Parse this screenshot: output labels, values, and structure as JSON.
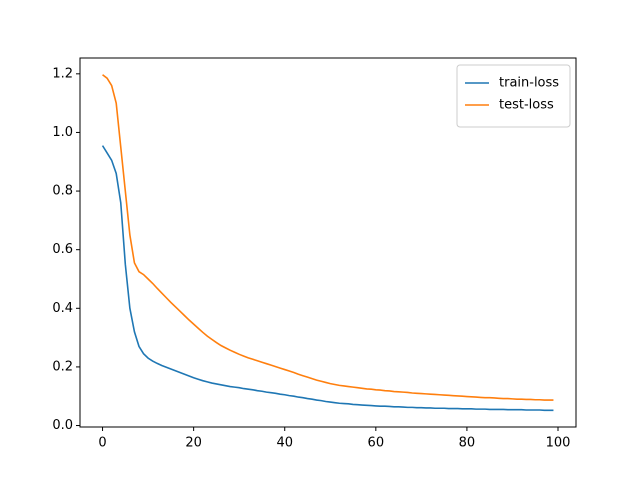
{
  "chart_data": {
    "type": "line",
    "x": [
      0,
      1,
      2,
      3,
      4,
      5,
      6,
      7,
      8,
      9,
      10,
      11,
      12,
      13,
      14,
      15,
      16,
      17,
      18,
      19,
      20,
      21,
      22,
      23,
      24,
      25,
      26,
      27,
      28,
      29,
      30,
      31,
      32,
      33,
      34,
      35,
      36,
      37,
      38,
      39,
      40,
      41,
      42,
      43,
      44,
      45,
      46,
      47,
      48,
      49,
      50,
      51,
      52,
      53,
      54,
      55,
      56,
      57,
      58,
      59,
      60,
      61,
      62,
      63,
      64,
      65,
      66,
      67,
      68,
      69,
      70,
      71,
      72,
      73,
      74,
      75,
      76,
      77,
      78,
      79,
      80,
      81,
      82,
      83,
      84,
      85,
      86,
      87,
      88,
      89,
      90,
      91,
      92,
      93,
      94,
      95,
      96,
      97,
      98,
      99
    ],
    "series": [
      {
        "name": "train-loss",
        "color": "#1f77b4",
        "values": [
          0.955,
          0.93,
          0.905,
          0.86,
          0.76,
          0.55,
          0.4,
          0.32,
          0.27,
          0.245,
          0.23,
          0.22,
          0.212,
          0.205,
          0.199,
          0.193,
          0.187,
          0.181,
          0.175,
          0.169,
          0.163,
          0.158,
          0.153,
          0.149,
          0.145,
          0.142,
          0.139,
          0.136,
          0.133,
          0.131,
          0.129,
          0.126,
          0.124,
          0.122,
          0.119,
          0.117,
          0.114,
          0.112,
          0.11,
          0.107,
          0.105,
          0.102,
          0.1,
          0.097,
          0.095,
          0.092,
          0.09,
          0.087,
          0.085,
          0.082,
          0.08,
          0.078,
          0.076,
          0.075,
          0.074,
          0.072,
          0.071,
          0.07,
          0.069,
          0.068,
          0.067,
          0.066,
          0.066,
          0.065,
          0.064,
          0.064,
          0.063,
          0.062,
          0.062,
          0.061,
          0.061,
          0.06,
          0.06,
          0.059,
          0.059,
          0.059,
          0.058,
          0.058,
          0.058,
          0.057,
          0.057,
          0.057,
          0.056,
          0.056,
          0.056,
          0.055,
          0.055,
          0.055,
          0.055,
          0.054,
          0.054,
          0.054,
          0.054,
          0.053,
          0.053,
          0.053,
          0.053,
          0.052,
          0.052,
          0.052
        ]
      },
      {
        "name": "test-loss",
        "color": "#ff7f0e",
        "values": [
          1.197,
          1.185,
          1.16,
          1.1,
          0.95,
          0.8,
          0.65,
          0.555,
          0.525,
          0.515,
          0.5,
          0.485,
          0.468,
          0.452,
          0.436,
          0.42,
          0.405,
          0.39,
          0.375,
          0.36,
          0.346,
          0.332,
          0.318,
          0.305,
          0.294,
          0.283,
          0.273,
          0.265,
          0.257,
          0.25,
          0.243,
          0.237,
          0.231,
          0.226,
          0.221,
          0.216,
          0.211,
          0.206,
          0.201,
          0.196,
          0.191,
          0.186,
          0.181,
          0.175,
          0.17,
          0.165,
          0.16,
          0.155,
          0.151,
          0.147,
          0.143,
          0.14,
          0.137,
          0.135,
          0.133,
          0.131,
          0.129,
          0.127,
          0.125,
          0.124,
          0.122,
          0.121,
          0.119,
          0.118,
          0.116,
          0.115,
          0.114,
          0.113,
          0.111,
          0.11,
          0.109,
          0.108,
          0.107,
          0.106,
          0.105,
          0.104,
          0.103,
          0.102,
          0.101,
          0.1,
          0.099,
          0.098,
          0.097,
          0.096,
          0.095,
          0.095,
          0.094,
          0.093,
          0.092,
          0.092,
          0.091,
          0.09,
          0.09,
          0.089,
          0.089,
          0.088,
          0.088,
          0.087,
          0.087,
          0.087
        ]
      }
    ],
    "xlim": [
      -4.95,
      103.95
    ],
    "ylim": [
      -0.005,
      1.254
    ],
    "xticks": [
      0,
      20,
      40,
      60,
      80,
      100
    ],
    "yticks": [
      {
        "value": 0,
        "label": "0.0"
      },
      0.2,
      0.4,
      0.6,
      0.8,
      {
        "value": 1,
        "label": "1.0"
      },
      1.2
    ],
    "legend": "upper right",
    "grid": false
  }
}
